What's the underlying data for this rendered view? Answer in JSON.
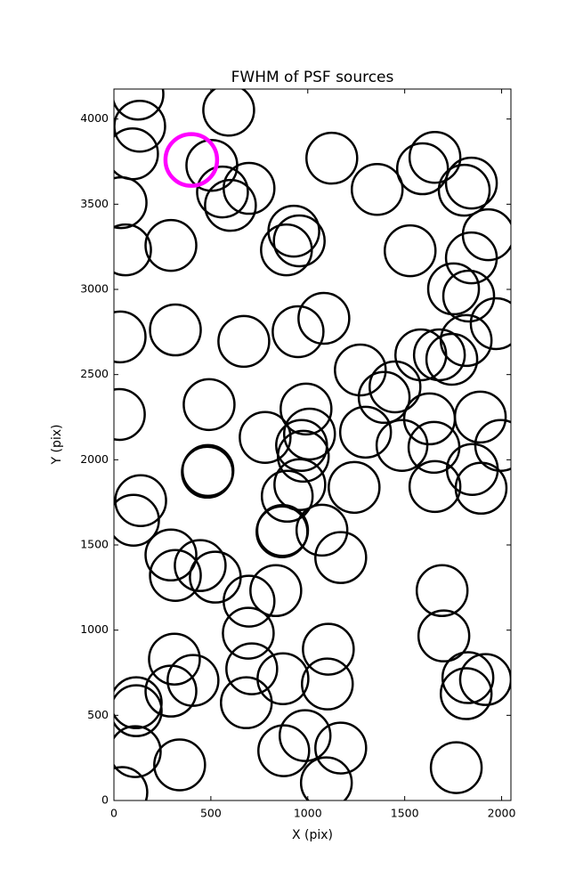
{
  "chart_data": {
    "type": "scatter",
    "title": "FWHM of PSF sources",
    "x_label": "X (pix)",
    "y_label": "Y (pix)",
    "xlim": [
      0,
      2048
    ],
    "ylim": [
      0,
      4176
    ],
    "xticks": [
      0,
      500,
      1000,
      1500,
      2000
    ],
    "yticks": [
      0,
      500,
      1000,
      1500,
      2000,
      2500,
      3000,
      3500,
      4000
    ],
    "series": [
      {
        "color": "#000000",
        "x": [
          124,
          133,
          96,
          592,
          505,
          560,
          601,
          697,
          37,
          60,
          294,
          928,
          956,
          890,
          1124,
          1358,
          1592,
          1656,
          1844,
          1807,
          1528,
          1931,
          1844,
          1752,
          1830,
          32,
          317,
          670,
          950,
          1083,
          1972,
          1817,
          1743,
          1679,
          1583,
          1271,
          1450,
          1394,
          28,
          491,
          991,
          1009,
          780,
          1298,
          1486,
          1628,
          1651,
          1890,
          1995,
          1849,
          482,
          485,
          968,
          977,
          959,
          894,
          1239,
          1656,
          1894,
          138,
          101,
          867,
          870,
          1073,
          1170,
          294,
          317,
          445,
          523,
          697,
          835,
          693,
          1693,
          1702,
          1106,
          312,
          408,
          711,
          872,
          1101,
          115,
          115,
          294,
          683,
          1826,
          1917,
          1817,
          110,
          339,
          876,
          986,
          1170,
          1096,
          1766,
          41
        ],
        "values": [
          4146,
          3958,
          3796,
          4052,
          3728,
          3572,
          3493,
          3593,
          3509,
          3232,
          3258,
          3342,
          3285,
          3232,
          3770,
          3587,
          3708,
          3775,
          3624,
          3582,
          3227,
          3321,
          3185,
          3003,
          2961,
          2721,
          2762,
          2695,
          2752,
          2830,
          2799,
          2700,
          2590,
          2616,
          2616,
          2527,
          2428,
          2366,
          2266,
          2324,
          2298,
          2151,
          2131,
          2162,
          2084,
          2240,
          2073,
          2251,
          2084,
          1943,
          1927,
          1937,
          2084,
          2021,
          1854,
          1786,
          1838,
          1843,
          1833,
          1760,
          1645,
          1577,
          1585,
          1587,
          1426,
          1441,
          1321,
          1379,
          1311,
          1170,
          1232,
          982,
          1232,
          966,
          888,
          830,
          705,
          773,
          715,
          684,
          574,
          527,
          642,
          574,
          721,
          710,
          627,
          287,
          209,
          292,
          381,
          308,
          104,
          193,
          47
        ]
      },
      {
        "color": "#ff00ff",
        "x": [
          399
        ],
        "values": [
          3760
        ]
      }
    ]
  }
}
